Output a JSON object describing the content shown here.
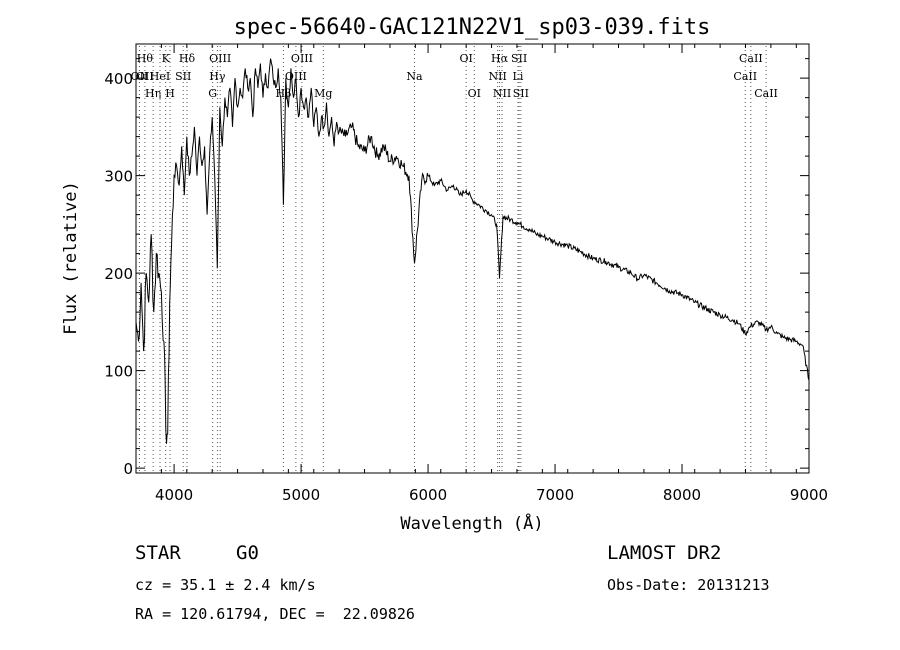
{
  "chart_data": {
    "type": "line",
    "title": "spec-56640-GAC121N22V1_sp03-039.fits",
    "xlabel": "Wavelength (Å)",
    "ylabel": "Flux (relative)",
    "xlim": [
      3700,
      9000
    ],
    "ylim": [
      -5,
      435
    ],
    "xticks": [
      4000,
      5000,
      6000,
      7000,
      8000,
      9000
    ],
    "yticks": [
      0,
      100,
      200,
      300,
      400
    ],
    "grid": false,
    "series": [
      {
        "x": [
          3700,
          3720,
          3740,
          3760,
          3780,
          3800,
          3820,
          3840,
          3860,
          3880,
          3900,
          3920,
          3935,
          3950,
          3965,
          3980,
          4000,
          4020,
          4040,
          4060,
          4080,
          4100,
          4120,
          4140,
          4160,
          4180,
          4200,
          4220,
          4240,
          4260,
          4280,
          4300,
          4320,
          4340,
          4360,
          4380,
          4400,
          4420,
          4440,
          4460,
          4480,
          4500,
          4520,
          4540,
          4560,
          4580,
          4600,
          4620,
          4640,
          4660,
          4680,
          4700,
          4720,
          4740,
          4760,
          4780,
          4800,
          4820,
          4840,
          4861,
          4880,
          4900,
          4920,
          4940,
          4960,
          4980,
          5000,
          5020,
          5040,
          5060,
          5080,
          5100,
          5120,
          5140,
          5160,
          5180,
          5200,
          5220,
          5240,
          5260,
          5280,
          5300,
          5350,
          5400,
          5450,
          5500,
          5550,
          5600,
          5650,
          5700,
          5750,
          5800,
          5850,
          5893,
          5950,
          6000,
          6050,
          6100,
          6150,
          6200,
          6250,
          6300,
          6350,
          6400,
          6450,
          6500,
          6540,
          6563,
          6590,
          6650,
          6700,
          6750,
          6800,
          6850,
          6900,
          6950,
          7000,
          7100,
          7200,
          7300,
          7400,
          7500,
          7600,
          7650,
          7700,
          7800,
          7900,
          8000,
          8100,
          8200,
          8300,
          8400,
          8450,
          8498,
          8542,
          8600,
          8662,
          8700,
          8750,
          8800,
          8850,
          8900,
          8950,
          9000
        ],
        "y": [
          150,
          130,
          190,
          120,
          200,
          170,
          240,
          160,
          220,
          200,
          180,
          130,
          40,
          35,
          170,
          230,
          300,
          310,
          290,
          330,
          280,
          340,
          300,
          320,
          350,
          300,
          340,
          310,
          330,
          260,
          320,
          360,
          300,
          205,
          370,
          330,
          380,
          360,
          390,
          350,
          400,
          370,
          390,
          380,
          410,
          390,
          400,
          360,
          410,
          390,
          415,
          380,
          405,
          390,
          420,
          400,
          390,
          410,
          380,
          270,
          400,
          370,
          410,
          380,
          400,
          360,
          390,
          370,
          380,
          360,
          390,
          350,
          370,
          340,
          360,
          350,
          375,
          340,
          360,
          330,
          355,
          345,
          340,
          350,
          330,
          325,
          340,
          320,
          330,
          315,
          320,
          310,
          300,
          210,
          295,
          300,
          290,
          295,
          285,
          290,
          280,
          285,
          275,
          270,
          265,
          260,
          250,
          195,
          258,
          255,
          252,
          248,
          245,
          240,
          238,
          235,
          232,
          228,
          222,
          215,
          212,
          206,
          200,
          194,
          198,
          190,
          182,
          178,
          170,
          163,
          157,
          152,
          148,
          138,
          146,
          150,
          142,
          145,
          138,
          134,
          132,
          130,
          126,
          90
        ]
      }
    ],
    "line_markers": [
      {
        "wavelength": 3727,
        "labels": [
          "OII"
        ],
        "row": 1
      },
      {
        "wavelength": 3770,
        "labels": [
          "Hθ",
          "OII"
        ],
        "row": 0
      },
      {
        "wavelength": 3835,
        "labels": [
          "Hη"
        ],
        "row": 2
      },
      {
        "wavelength": 3889,
        "labels": [
          "HeI"
        ],
        "row": 1
      },
      {
        "wavelength": 3934,
        "labels": [
          "K"
        ],
        "row": 0
      },
      {
        "wavelength": 3968,
        "labels": [
          "H"
        ],
        "row": 2
      },
      {
        "wavelength": 4072,
        "labels": [
          "SII"
        ],
        "row": 1
      },
      {
        "wavelength": 4102,
        "labels": [
          "Hδ"
        ],
        "row": 0
      },
      {
        "wavelength": 4304,
        "labels": [
          "G"
        ],
        "row": 2
      },
      {
        "wavelength": 4341,
        "labels": [
          "Hγ"
        ],
        "row": 1
      },
      {
        "wavelength": 4363,
        "labels": [
          "OIII"
        ],
        "row": 0
      },
      {
        "wavelength": 4861,
        "labels": [
          "Hβ"
        ],
        "row": 2
      },
      {
        "wavelength": 4959,
        "labels": [
          "OIII"
        ],
        "row": 1
      },
      {
        "wavelength": 5007,
        "labels": [
          "OIII"
        ],
        "row": 0
      },
      {
        "wavelength": 5175,
        "labels": [
          "Mg"
        ],
        "row": 2
      },
      {
        "wavelength": 5893,
        "labels": [
          "Na"
        ],
        "row": 1
      },
      {
        "wavelength": 6300,
        "labels": [
          "OI"
        ],
        "row": 0
      },
      {
        "wavelength": 6364,
        "labels": [
          "OI"
        ],
        "row": 2
      },
      {
        "wavelength": 6548,
        "labels": [
          "NII"
        ],
        "row": 1
      },
      {
        "wavelength": 6563,
        "labels": [
          "Hα"
        ],
        "row": 0
      },
      {
        "wavelength": 6583,
        "labels": [
          "NII"
        ],
        "row": 2
      },
      {
        "wavelength": 6708,
        "labels": [
          "Li"
        ],
        "row": 1
      },
      {
        "wavelength": 6717,
        "labels": [
          "SII"
        ],
        "row": 0
      },
      {
        "wavelength": 6731,
        "labels": [
          "SII"
        ],
        "row": 2
      },
      {
        "wavelength": 8498,
        "labels": [
          "CaII"
        ],
        "row": 1
      },
      {
        "wavelength": 8542,
        "labels": [
          "CaII"
        ],
        "row": 0
      },
      {
        "wavelength": 8662,
        "labels": [
          "CaII"
        ],
        "row": 2
      }
    ]
  },
  "info": {
    "object_class": "STAR",
    "subclass": "G0",
    "survey": "LAMOST DR2",
    "redshift_line": "cz = 35.1 ± 2.4 km/s",
    "obs_date_line": "Obs-Date: 20131213",
    "coords_line": "RA = 120.61794, DEC =  22.09826"
  }
}
